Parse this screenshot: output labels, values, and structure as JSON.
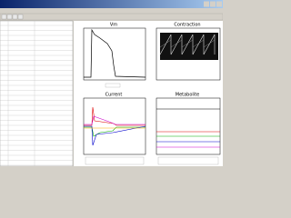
{
  "panels": [
    {
      "title": "Vm"
    },
    {
      "title": "Contraction"
    },
    {
      "title": "Current"
    },
    {
      "title": "Metabolite"
    }
  ]
}
